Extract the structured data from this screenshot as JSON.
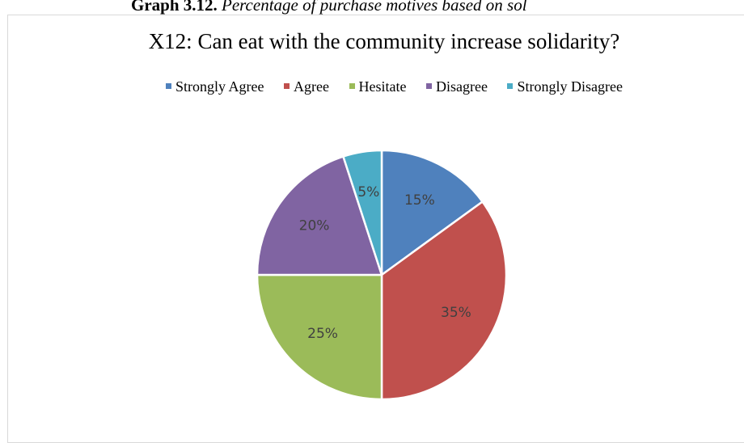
{
  "caption": {
    "label": "Graph 3.12.",
    "text": "Percentage of purchase motives based on sol"
  },
  "chart_data": {
    "type": "pie",
    "title": "X12: Can eat with the community increase solidarity?",
    "categories": [
      "Strongly Agree",
      "Agree",
      "Hesitate",
      "Disagree",
      "Strongly Disagree"
    ],
    "values": [
      15,
      35,
      25,
      20,
      5
    ],
    "labels": [
      "15%",
      "35%",
      "25%",
      "20%",
      "5%"
    ],
    "colors": [
      "#4f81bd",
      "#c0504d",
      "#9bbb59",
      "#8064a2",
      "#4bacc6"
    ],
    "legend": "top",
    "start_angle": "12 o'clock, clockwise"
  }
}
